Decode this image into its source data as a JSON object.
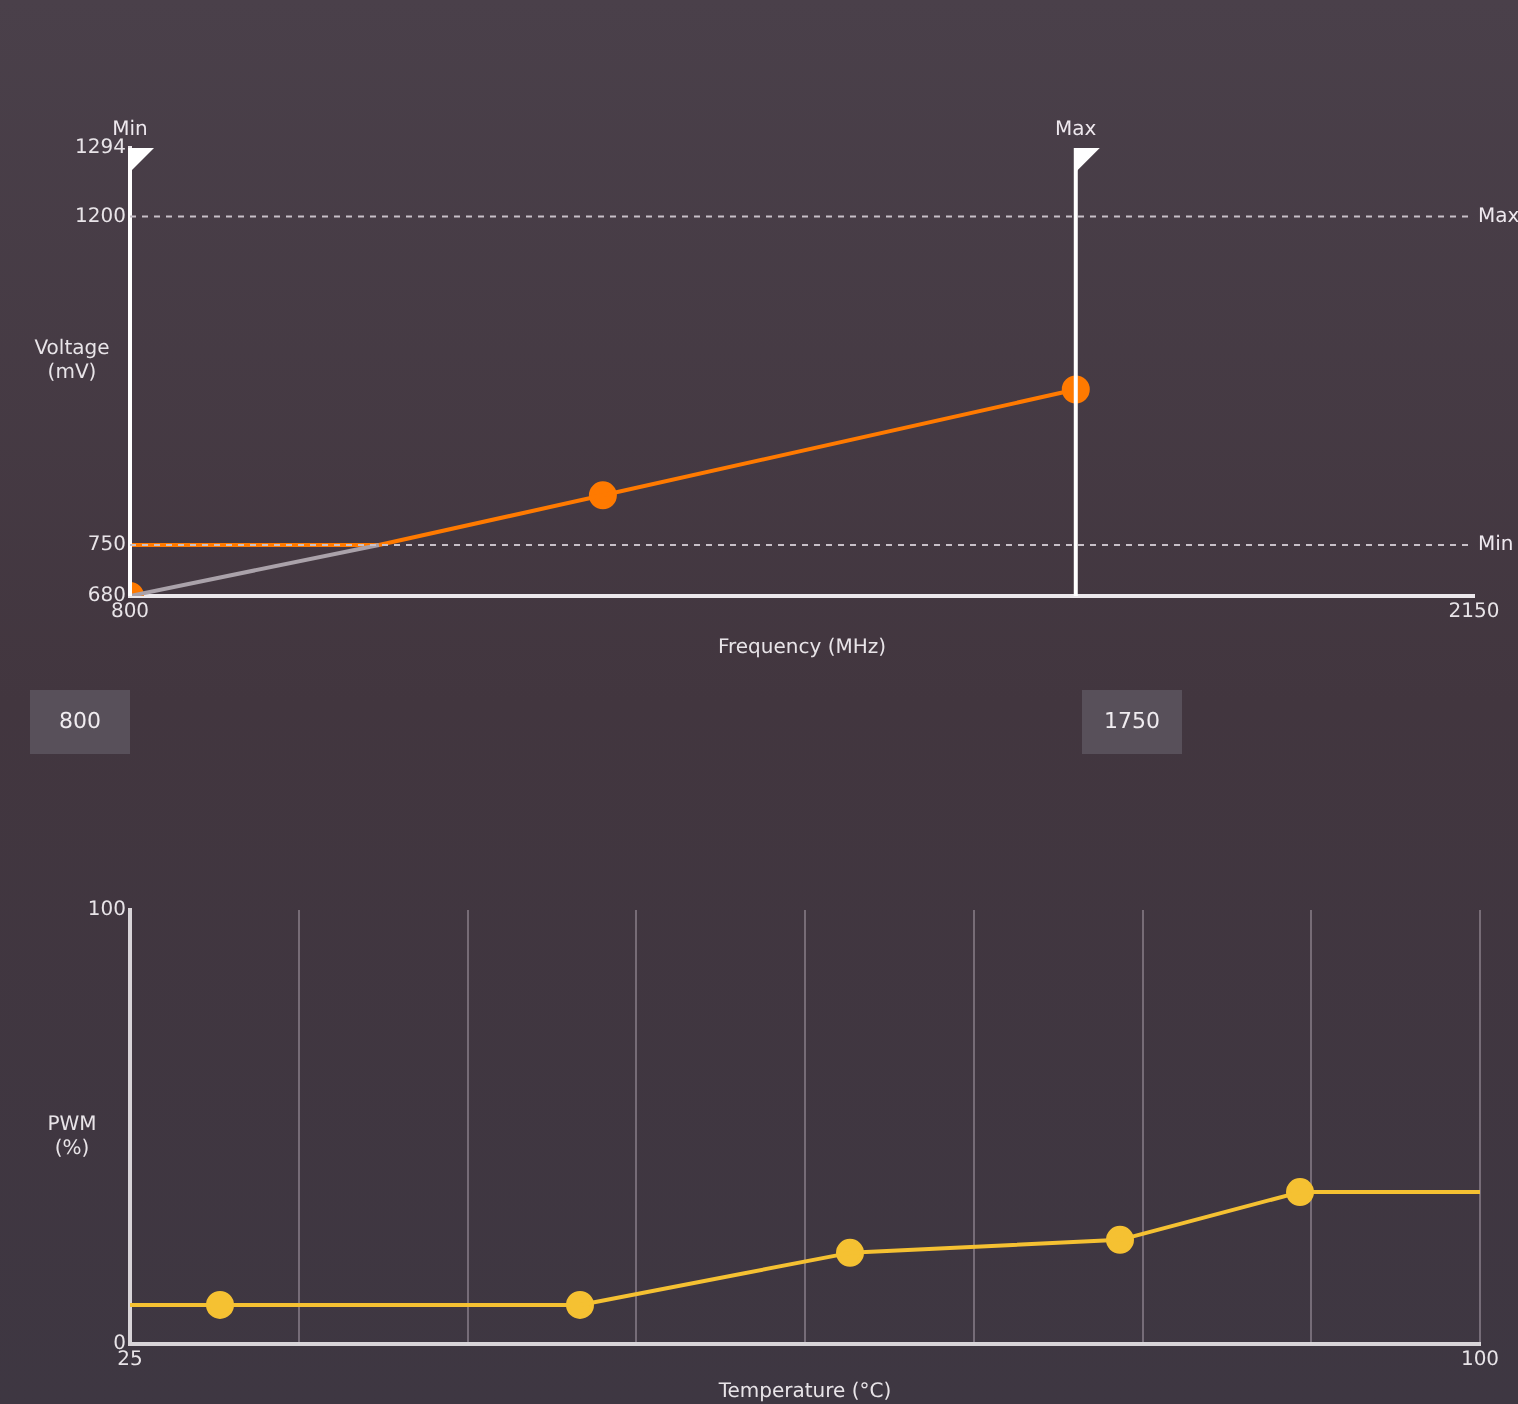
{
  "chart_data": [
    {
      "type": "line",
      "xlabel": "Frequency (MHz)",
      "ylabel": "Voltage (mV)",
      "xlim": [
        800,
        2150
      ],
      "xticks": [
        800,
        2150
      ],
      "ylim": [
        680,
        1294
      ],
      "yticks": [
        680,
        750,
        1200,
        1294
      ],
      "grid": false,
      "legend": false,
      "series": [
        {
          "type": "line",
          "color": "#aaa2aa",
          "x": [
            800,
            1050
          ],
          "values": [
            680,
            750
          ],
          "marker": "none"
        },
        {
          "type": "line",
          "color": "#ff7a00",
          "x": [
            800,
            1050,
            1275,
            1750
          ],
          "values": [
            750,
            750,
            818,
            963
          ],
          "marker": "none"
        },
        {
          "type": "scatter",
          "color": "#ff7a00",
          "x": [
            800,
            1275,
            1750
          ],
          "values": [
            680,
            818,
            963
          ],
          "marker": "circle"
        }
      ],
      "ref_lines": [
        {
          "axis": "x",
          "value": 800,
          "label": "Min",
          "color": "#ffffff",
          "line_style": "solid"
        },
        {
          "axis": "x",
          "value": 1750,
          "label": "Max",
          "color": "#ffffff",
          "line_style": "solid"
        },
        {
          "axis": "y",
          "value": 1200,
          "label": "Max",
          "color": "#c8c0c8",
          "line_style": "dashed"
        },
        {
          "axis": "y",
          "value": 750,
          "label": "Min",
          "color": "#c8c0c8",
          "line_style": "dashed"
        }
      ],
      "annotations": [
        "800",
        "1750"
      ]
    },
    {
      "type": "line",
      "xlabel": "Temperature (°C)",
      "ylabel": "PWM (%)",
      "xlim": [
        25,
        100
      ],
      "xticks": [
        25,
        {
          "value": 34.375,
          "label": null
        },
        {
          "value": 43.75,
          "label": null
        },
        {
          "value": 53.125,
          "label": null
        },
        {
          "value": 62.5,
          "label": null
        },
        {
          "value": 71.875,
          "label": null
        },
        {
          "value": 81.25,
          "label": null
        },
        {
          "value": 90.625,
          "label": null
        },
        100
      ],
      "ylim": [
        0,
        100
      ],
      "yticks": [
        0,
        100
      ],
      "grid": "x",
      "legend": false,
      "series": [
        {
          "type": "line",
          "color": "#f5c132",
          "x": [
            25,
            30,
            50,
            65,
            80,
            90,
            100
          ],
          "values": [
            9,
            9,
            9,
            21,
            24,
            35,
            35
          ],
          "marker": "none"
        },
        {
          "type": "scatter",
          "color": "#f5c132",
          "x": [
            30,
            50,
            65,
            80,
            90
          ],
          "values": [
            9,
            9,
            21,
            24,
            35
          ],
          "marker": "circle"
        }
      ]
    }
  ]
}
